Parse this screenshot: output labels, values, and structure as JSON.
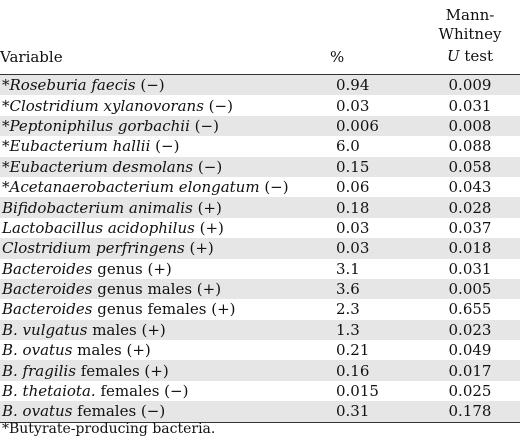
{
  "headers": {
    "variable": "Variable",
    "percent": "%",
    "mw_line1": "Mann-Whitney",
    "mw_line2_italic": "U",
    "mw_line2_rest": " test"
  },
  "rows": [
    {
      "prefix": "*",
      "italic": "Roseburia faecis",
      "suffix": " (−)",
      "pct": "0.94",
      "p": "0.009"
    },
    {
      "prefix": "*",
      "italic": "Clostridium xylanovorans",
      "suffix": " (−)",
      "pct": "0.03",
      "p": "0.031"
    },
    {
      "prefix": "*",
      "italic": "Peptoniphilus gorbachii",
      "suffix": " (−)",
      "pct": "0.006",
      "p": "0.008"
    },
    {
      "prefix": "*",
      "italic": "Eubacterium hallii",
      "suffix": " (−)",
      "pct": "6.0",
      "p": "0.088"
    },
    {
      "prefix": "*",
      "italic": "Eubacterium desmolans",
      "suffix": " (−)",
      "pct": "0.15",
      "p": "0.058"
    },
    {
      "prefix": "*",
      "italic": "Acetanaerobacterium elongatum",
      "suffix": " (−)",
      "pct": "0.06",
      "p": "0.043"
    },
    {
      "prefix": "",
      "italic": "Bifidobacterium animalis",
      "suffix": " (+)",
      "pct": "0.18",
      "p": "0.028"
    },
    {
      "prefix": "",
      "italic": "Lactobacillus acidophilus",
      "suffix": " (+)",
      "pct": "0.03",
      "p": "0.037"
    },
    {
      "prefix": "",
      "italic": "Clostridium perfringens",
      "suffix": " (+)",
      "pct": "0.03",
      "p": "0.018"
    },
    {
      "prefix": "",
      "italic": "Bacteroides",
      "suffix": " genus (+)",
      "pct": "3.1",
      "p": "0.031"
    },
    {
      "prefix": "",
      "italic": "Bacteroides",
      "suffix": " genus males (+)",
      "pct": "3.6",
      "p": "0.005"
    },
    {
      "prefix": "",
      "italic": "Bacteroides",
      "suffix": " genus females (+)",
      "pct": "2.3",
      "p": "0.655"
    },
    {
      "prefix": "",
      "italic": "B. vulgatus",
      "suffix": " males (+)",
      "pct": "1.3",
      "p": "0.023"
    },
    {
      "prefix": "",
      "italic": "B. ovatus",
      "suffix": " males (+)",
      "pct": "0.21",
      "p": "0.049"
    },
    {
      "prefix": "",
      "italic": "B. fragilis",
      "suffix": " females (+)",
      "pct": "0.16",
      "p": "0.017"
    },
    {
      "prefix": "",
      "italic": "B. thetaiota.",
      "suffix": " females (−)",
      "pct": "0.015",
      "p": "0.025"
    },
    {
      "prefix": "",
      "italic": "B. ovatus",
      "suffix": " females (−)",
      "pct": "0.31",
      "p": "0.178"
    }
  ],
  "footnote": "*Butyrate-producing bacteria."
}
